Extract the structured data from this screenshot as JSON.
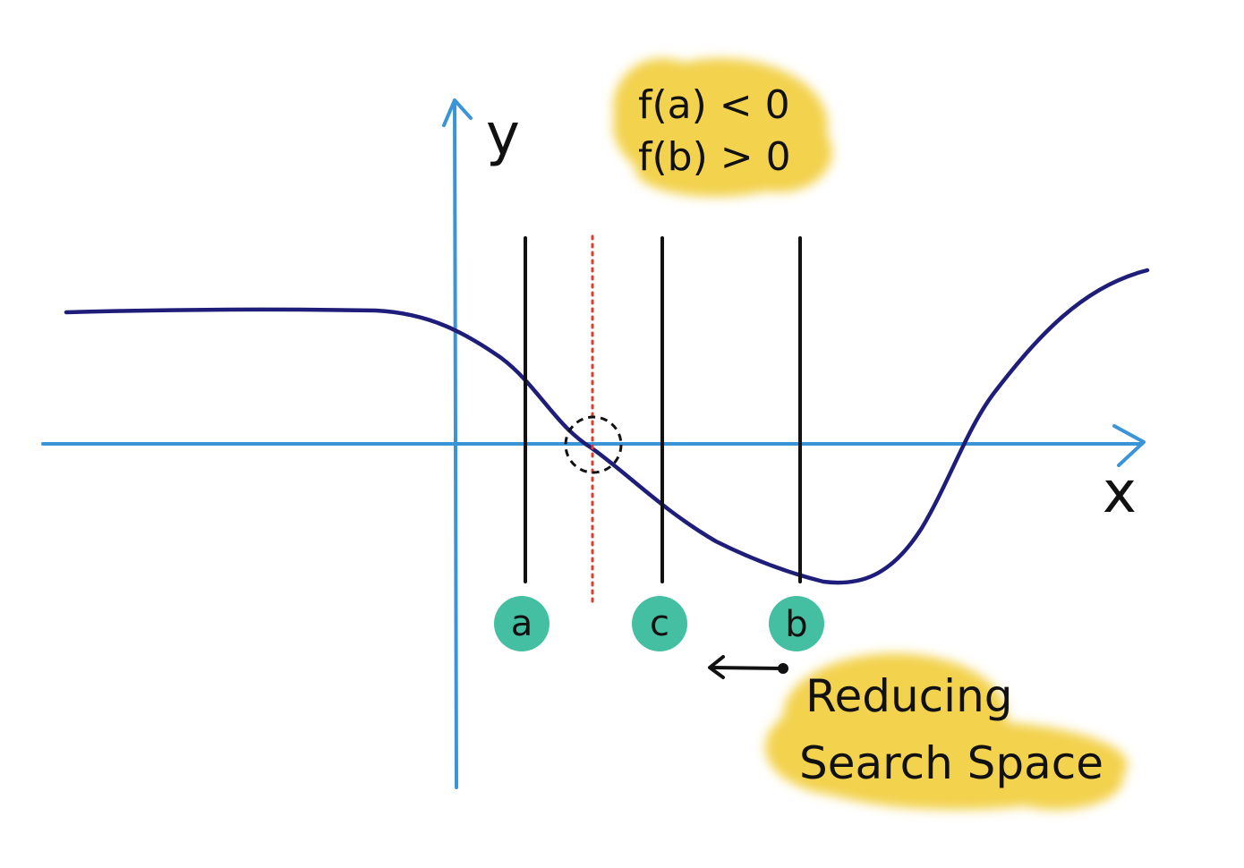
{
  "axes": {
    "y_label": "y",
    "x_label": "x"
  },
  "conditions": {
    "line1": "f(a) < 0",
    "line2": "f(b) > 0"
  },
  "points": {
    "a": "a",
    "c": "c",
    "b": "b"
  },
  "annotation": {
    "line1": "Reducing",
    "line2": "Search Space"
  },
  "colors": {
    "axis": "#3a95d8",
    "curve": "#1e1e7a",
    "marker_lines": "#111111",
    "midline": "#e83a2a",
    "point_bubble": "#45bfa1",
    "highlight": "#f3d24e"
  }
}
